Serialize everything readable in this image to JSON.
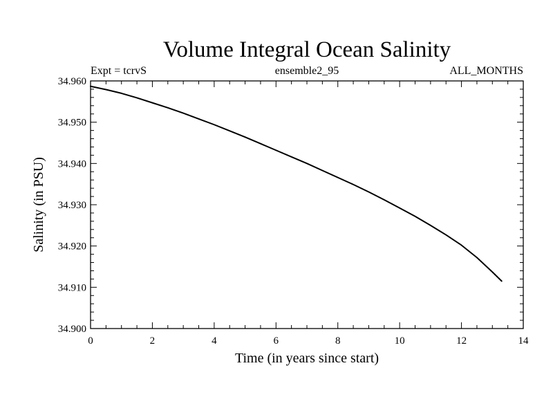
{
  "chart_data": {
    "type": "line",
    "title": "Volume Integral Ocean Salinity",
    "subtitle_left": "Expt = tcrvS",
    "subtitle_center": "ensemble2_95",
    "subtitle_right": "ALL_MONTHS",
    "xlabel": "Time (in years since start)",
    "ylabel": "Salinity (in PSU)",
    "xlim": [
      0,
      14
    ],
    "ylim": [
      34.9,
      34.96
    ],
    "x_ticks": [
      "0",
      "2",
      "4",
      "6",
      "8",
      "10",
      "12",
      "14"
    ],
    "y_ticks": [
      "34.900",
      "34.910",
      "34.920",
      "34.930",
      "34.940",
      "34.950",
      "34.960"
    ],
    "grid": false,
    "series": [
      {
        "name": "salinity",
        "color": "#000000",
        "x": [
          0,
          0.5,
          1,
          1.5,
          2,
          2.5,
          3,
          3.5,
          4,
          4.5,
          5,
          5.5,
          6,
          6.5,
          7,
          7.5,
          8,
          8.5,
          9,
          9.5,
          10,
          10.5,
          11,
          11.5,
          12,
          12.5,
          13,
          13.3
        ],
        "y": [
          34.9587,
          34.9579,
          34.957,
          34.9559,
          34.9547,
          34.9535,
          34.9522,
          34.9508,
          34.9494,
          34.9479,
          34.9464,
          34.9448,
          34.9432,
          34.9416,
          34.94,
          34.9383,
          34.9366,
          34.9349,
          34.9331,
          34.9312,
          34.9292,
          34.9272,
          34.925,
          34.9227,
          34.9202,
          34.9172,
          34.9137,
          34.9115
        ]
      }
    ]
  }
}
